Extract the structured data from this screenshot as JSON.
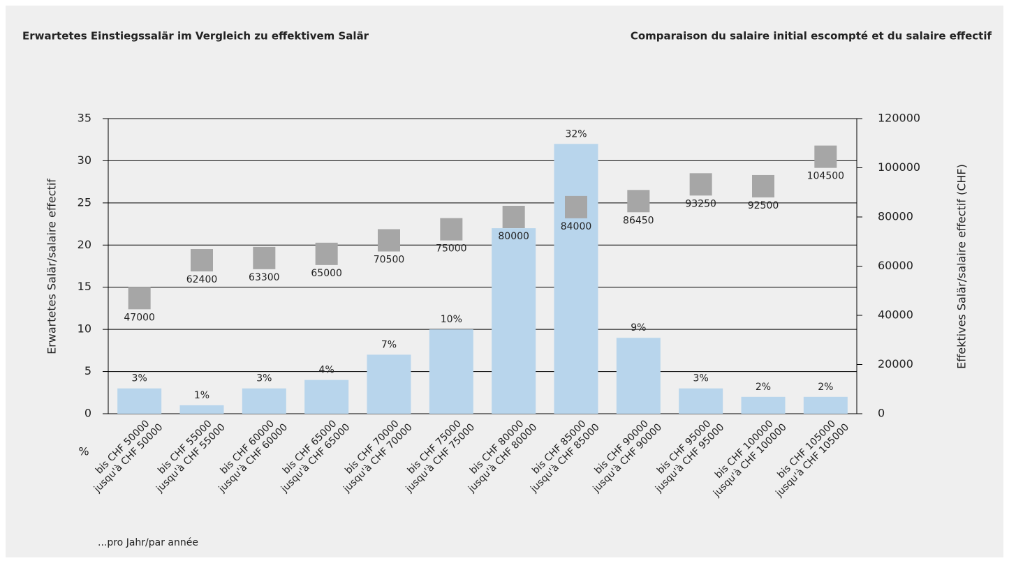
{
  "chart_data": {
    "type": "bar",
    "title": "Erwartetes Einstiegssalär im Vergleich zu effektivem Salär",
    "subtitle": "Comparaison du salaire initial escompté et du salaire effectif",
    "y_label": "Erwartetes Salär/salaire effectif",
    "y2_label": "Effektives Salär/salaire effectif (CHF)",
    "x_unit_label": "%",
    "footnote": "...pro Jahr/par année",
    "categories": [
      [
        "bis CHF 50000",
        "jusqu'à CHF 50000"
      ],
      [
        "bis CHF 55000",
        "jusqu'à CHF 55000"
      ],
      [
        "bis CHF 60000",
        "jusqu'à CHF 60000"
      ],
      [
        "bis CHF 65000",
        "jusqu'à CHF 65000"
      ],
      [
        "bis CHF 70000",
        "jusqu'à CHF 70000"
      ],
      [
        "bis CHF 75000",
        "jusqu'à CHF 75000"
      ],
      [
        "bis CHF 80000",
        "jusqu'à CHF 80000"
      ],
      [
        "bis CHF 85000",
        "jusqu'à CHF 85000"
      ],
      [
        "bis CHF 90000",
        "jusqu'à CHF 90000"
      ],
      [
        "bis CHF 95000",
        "jusqu'à CHF 95000"
      ],
      [
        "bis CHF 100000",
        "jusqu'à CHF 100000"
      ],
      [
        "bis CHF 105000",
        "jusqu'à CHF 105000"
      ]
    ],
    "series": [
      {
        "type": "bar",
        "color": "#b8d5ec",
        "values": [
          3,
          1,
          3,
          4,
          7,
          10,
          22,
          32,
          9,
          3,
          2,
          2
        ],
        "value_labels": [
          "3%",
          "1%",
          "3%",
          "4%",
          "7%",
          "10%",
          "22%",
          "32%",
          "9%",
          "3%",
          "2%",
          "2%"
        ]
      },
      {
        "type": "scatter",
        "color": "#a6a6a6",
        "axis": "y2",
        "values": [
          47000,
          62400,
          63300,
          65000,
          70500,
          75000,
          80000,
          84000,
          86450,
          93250,
          92500,
          104500
        ]
      }
    ],
    "ylim": [
      0,
      35
    ],
    "yticks": [
      0,
      5,
      10,
      15,
      20,
      25,
      30,
      35
    ],
    "y2lim": [
      0,
      120000
    ],
    "y2ticks": [
      0,
      20000,
      40000,
      60000,
      80000,
      100000,
      120000
    ],
    "grid": true
  }
}
